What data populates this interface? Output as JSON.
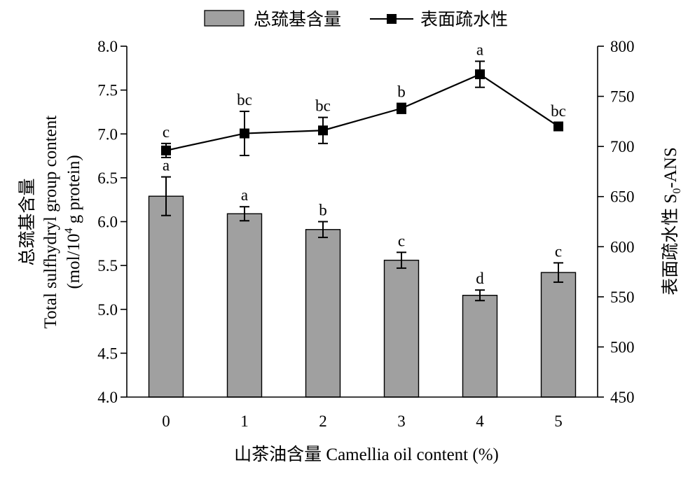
{
  "chart_data": {
    "type": "bar+line",
    "categories": [
      "0",
      "1",
      "2",
      "3",
      "4",
      "5"
    ],
    "xlabel": "山茶油含量 Camellia oil content (%)",
    "ylabel_left": [
      "总巯基含量",
      "Total sulfhydryl group content",
      "(mol/10",
      "4",
      " g protein)"
    ],
    "ylabel_right": [
      "表面疏水性 S",
      "0",
      "-ANS"
    ],
    "ylim_left": [
      4.0,
      8.0
    ],
    "yticks_left": [
      "4.0",
      "4.5",
      "5.0",
      "5.5",
      "6.0",
      "6.5",
      "7.0",
      "7.5",
      "8.0"
    ],
    "ylim_right": [
      450,
      800
    ],
    "yticks_right": [
      "450",
      "500",
      "550",
      "600",
      "650",
      "700",
      "750",
      "800"
    ],
    "legend_position": "top-center",
    "series": [
      {
        "name": "总巯基含量",
        "type": "bar",
        "axis": "left",
        "color": "#a0a0a0",
        "values": [
          6.29,
          6.09,
          5.91,
          5.56,
          5.16,
          5.42
        ],
        "errors": [
          0.22,
          0.08,
          0.09,
          0.09,
          0.06,
          0.11
        ],
        "labels": [
          "a",
          "a",
          "b",
          "c",
          "d",
          "c"
        ]
      },
      {
        "name": "表面疏水性",
        "type": "line",
        "axis": "right",
        "color": "#000000",
        "values": [
          696,
          713,
          716,
          738,
          772,
          720
        ],
        "errors": [
          7,
          22,
          13,
          5,
          13,
          4
        ],
        "labels": [
          "c",
          "bc",
          "bc",
          "b",
          "a",
          "bc"
        ]
      }
    ]
  }
}
